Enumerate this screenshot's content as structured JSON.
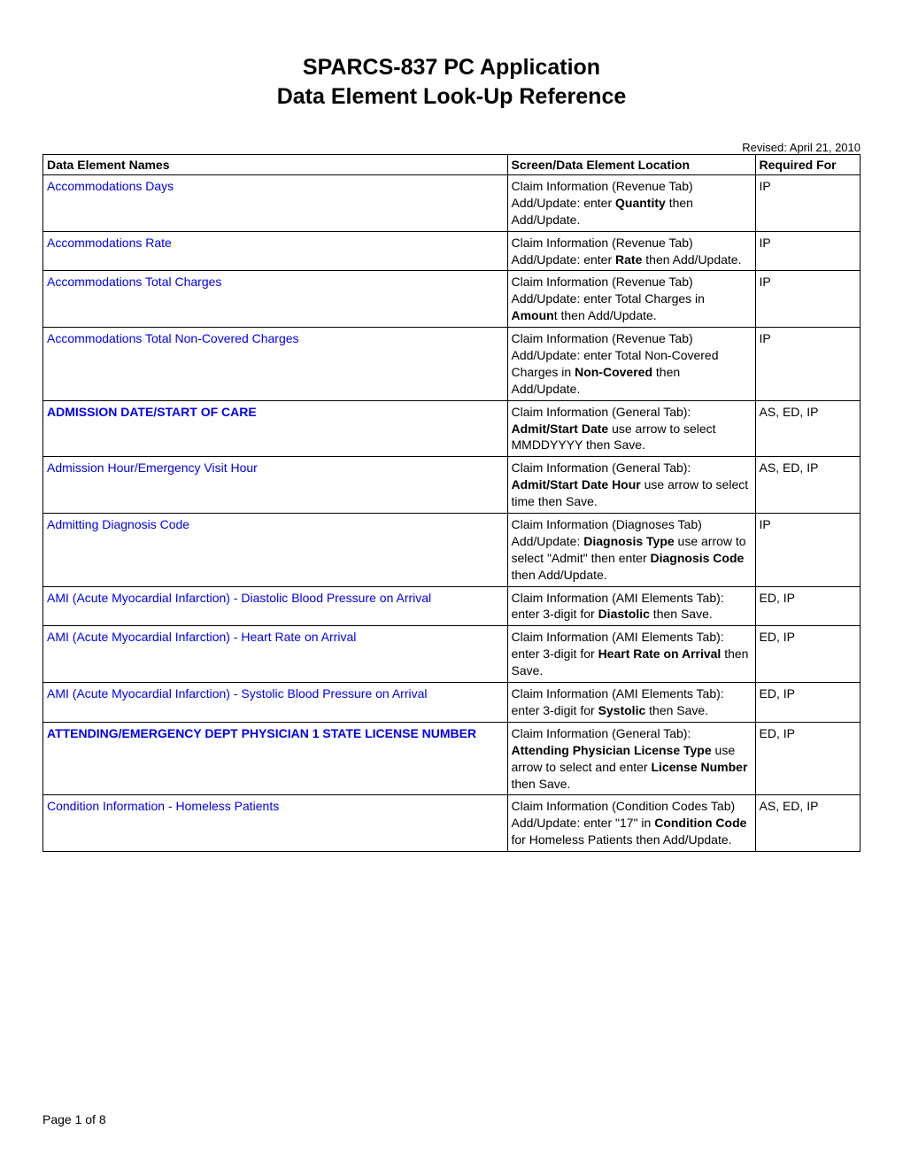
{
  "title_line1": "SPARCS-837 PC Application",
  "title_line2": "Data Element Look-Up Reference",
  "revised": "Revised: April 21, 2010",
  "columns": {
    "name": "Data Element Names",
    "location": "Screen/Data Element Location",
    "required": "Required For"
  },
  "rows": [
    {
      "name": "Accommodations Days",
      "name_bold": false,
      "loc_parts": [
        "Claim Information (Revenue Tab) Add/Update:  enter ",
        {
          "b": "Quantity"
        },
        " then Add/Update."
      ],
      "required": "IP"
    },
    {
      "name": "Accommodations Rate",
      "name_bold": false,
      "loc_parts": [
        "Claim Information (Revenue Tab) Add/Update:  enter ",
        {
          "b": "Rate"
        },
        " then Add/Update."
      ],
      "required": "IP"
    },
    {
      "name": "Accommodations Total Charges",
      "name_bold": false,
      "loc_parts": [
        "Claim Information (Revenue Tab) Add/Update:  enter Total Charges in ",
        {
          "b": "Amoun"
        },
        "t then Add/Update."
      ],
      "required": "IP"
    },
    {
      "name": "Accommodations Total Non-Covered Charges",
      "name_bold": false,
      "loc_parts": [
        "Claim Information (Revenue Tab) Add/Update:  enter Total Non-Covered Charges in ",
        {
          "b": "Non-Covered"
        },
        " then Add/Update."
      ],
      "required": "IP"
    },
    {
      "name": "ADMISSION DATE/START OF CARE",
      "name_bold": true,
      "loc_parts": [
        "Claim Information (General Tab): ",
        {
          "b": "Admit/Start Date"
        },
        " use arrow to select MMDDYYYY then Save."
      ],
      "required": "AS, ED, IP"
    },
    {
      "name": "Admission Hour/Emergency Visit Hour",
      "name_bold": false,
      "loc_parts": [
        "Claim Information (General Tab): ",
        {
          "b": "Admit/Start Date Hour"
        },
        " use arrow to select time then Save."
      ],
      "required": "AS, ED, IP"
    },
    {
      "name": "Admitting Diagnosis Code",
      "name_bold": false,
      "loc_parts": [
        "Claim Information (Diagnoses Tab) Add/Update:  ",
        {
          "b": "Diagnosis Type"
        },
        " use arrow to select \"Admit\" then enter ",
        {
          "b": "Diagnosis Code"
        },
        " then Add/Update."
      ],
      "required": "IP"
    },
    {
      "name": "AMI (Acute Myocardial Infarction) - Diastolic Blood Pressure on Arrival",
      "name_bold": false,
      "loc_parts": [
        "Claim Information (AMI Elements Tab):  enter 3-digit for ",
        {
          "b": "Diastolic"
        },
        " then Save."
      ],
      "required": "ED, IP"
    },
    {
      "name": "AMI (Acute Myocardial Infarction) - Heart Rate on Arrival",
      "name_bold": false,
      "loc_parts": [
        "Claim Information (AMI Elements Tab):  enter 3-digit for ",
        {
          "b": "Heart Rate on Arrival"
        },
        " then Save."
      ],
      "required": "ED, IP"
    },
    {
      "name": "AMI (Acute Myocardial Infarction) - Systolic Blood Pressure on Arrival",
      "name_bold": false,
      "loc_parts": [
        "Claim Information (AMI Elements Tab):  enter 3-digit for ",
        {
          "b": "Systolic"
        },
        " then Save."
      ],
      "required": "ED, IP"
    },
    {
      "name": "ATTENDING/EMERGENCY DEPT PHYSICIAN 1 STATE LICENSE NUMBER",
      "name_bold": true,
      "loc_parts": [
        "Claim Information (General Tab): ",
        {
          "b": "Attending Physician License Type"
        },
        " use arrow to select and enter ",
        {
          "b": "License Number"
        },
        " then Save."
      ],
      "required": "ED, IP"
    },
    {
      "name": "Condition Information - Homeless Patients",
      "name_bold": false,
      "loc_parts": [
        "Claim Information (Condition Codes Tab) Add/Update:  enter \"17\" in ",
        {
          "b": "Condition Code"
        },
        " for Homeless Patients then Add/Update."
      ],
      "required": "AS, ED, IP"
    }
  ],
  "footer": "Page 1 of 8",
  "colors": {
    "link": "#0000ee",
    "text": "#000000",
    "border": "#000000",
    "background": "#ffffff"
  }
}
